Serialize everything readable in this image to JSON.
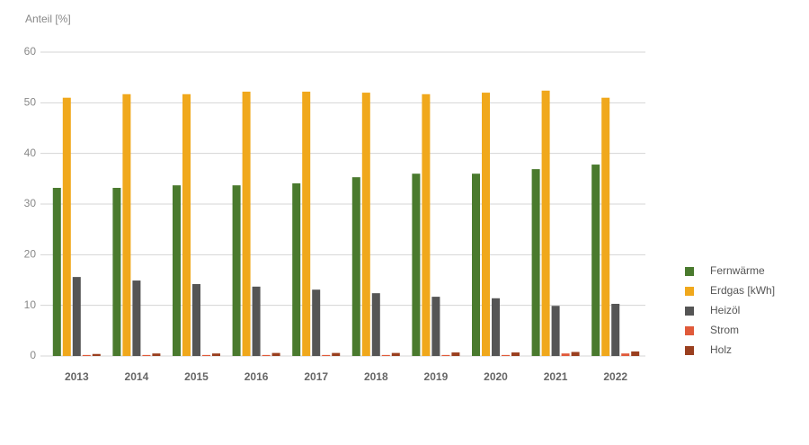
{
  "chart_data": {
    "type": "bar",
    "y_axis_label": "Anteil [%]",
    "categories": [
      "2013",
      "2014",
      "2015",
      "2016",
      "2017",
      "2018",
      "2019",
      "2020",
      "2021",
      "2022"
    ],
    "series": [
      {
        "name": "Fernwärme",
        "color": "#4a7a2e",
        "values": [
          33.2,
          33.2,
          33.7,
          33.7,
          34.1,
          35.3,
          36.0,
          36.0,
          36.9,
          37.8
        ]
      },
      {
        "name": "Erdgas [kWh]",
        "color": "#f0a81c",
        "values": [
          51.0,
          51.7,
          51.7,
          52.2,
          52.2,
          52.0,
          51.7,
          52.0,
          52.4,
          51.0
        ]
      },
      {
        "name": "Heizöl",
        "color": "#555555",
        "values": [
          15.6,
          14.9,
          14.2,
          13.7,
          13.1,
          12.4,
          11.7,
          11.4,
          9.9,
          10.3
        ]
      },
      {
        "name": "Strom",
        "color": "#e05a3a",
        "values": [
          0.2,
          0.2,
          0.2,
          0.2,
          0.2,
          0.2,
          0.2,
          0.2,
          0.5,
          0.5
        ]
      },
      {
        "name": "Holz",
        "color": "#9a3f1f",
        "values": [
          0.4,
          0.5,
          0.5,
          0.6,
          0.6,
          0.6,
          0.7,
          0.7,
          0.8,
          0.9
        ]
      }
    ],
    "ylim": [
      0,
      60
    ],
    "yticks": [
      0,
      10,
      20,
      30,
      40,
      50,
      60
    ],
    "grid": true,
    "legend": "right"
  }
}
